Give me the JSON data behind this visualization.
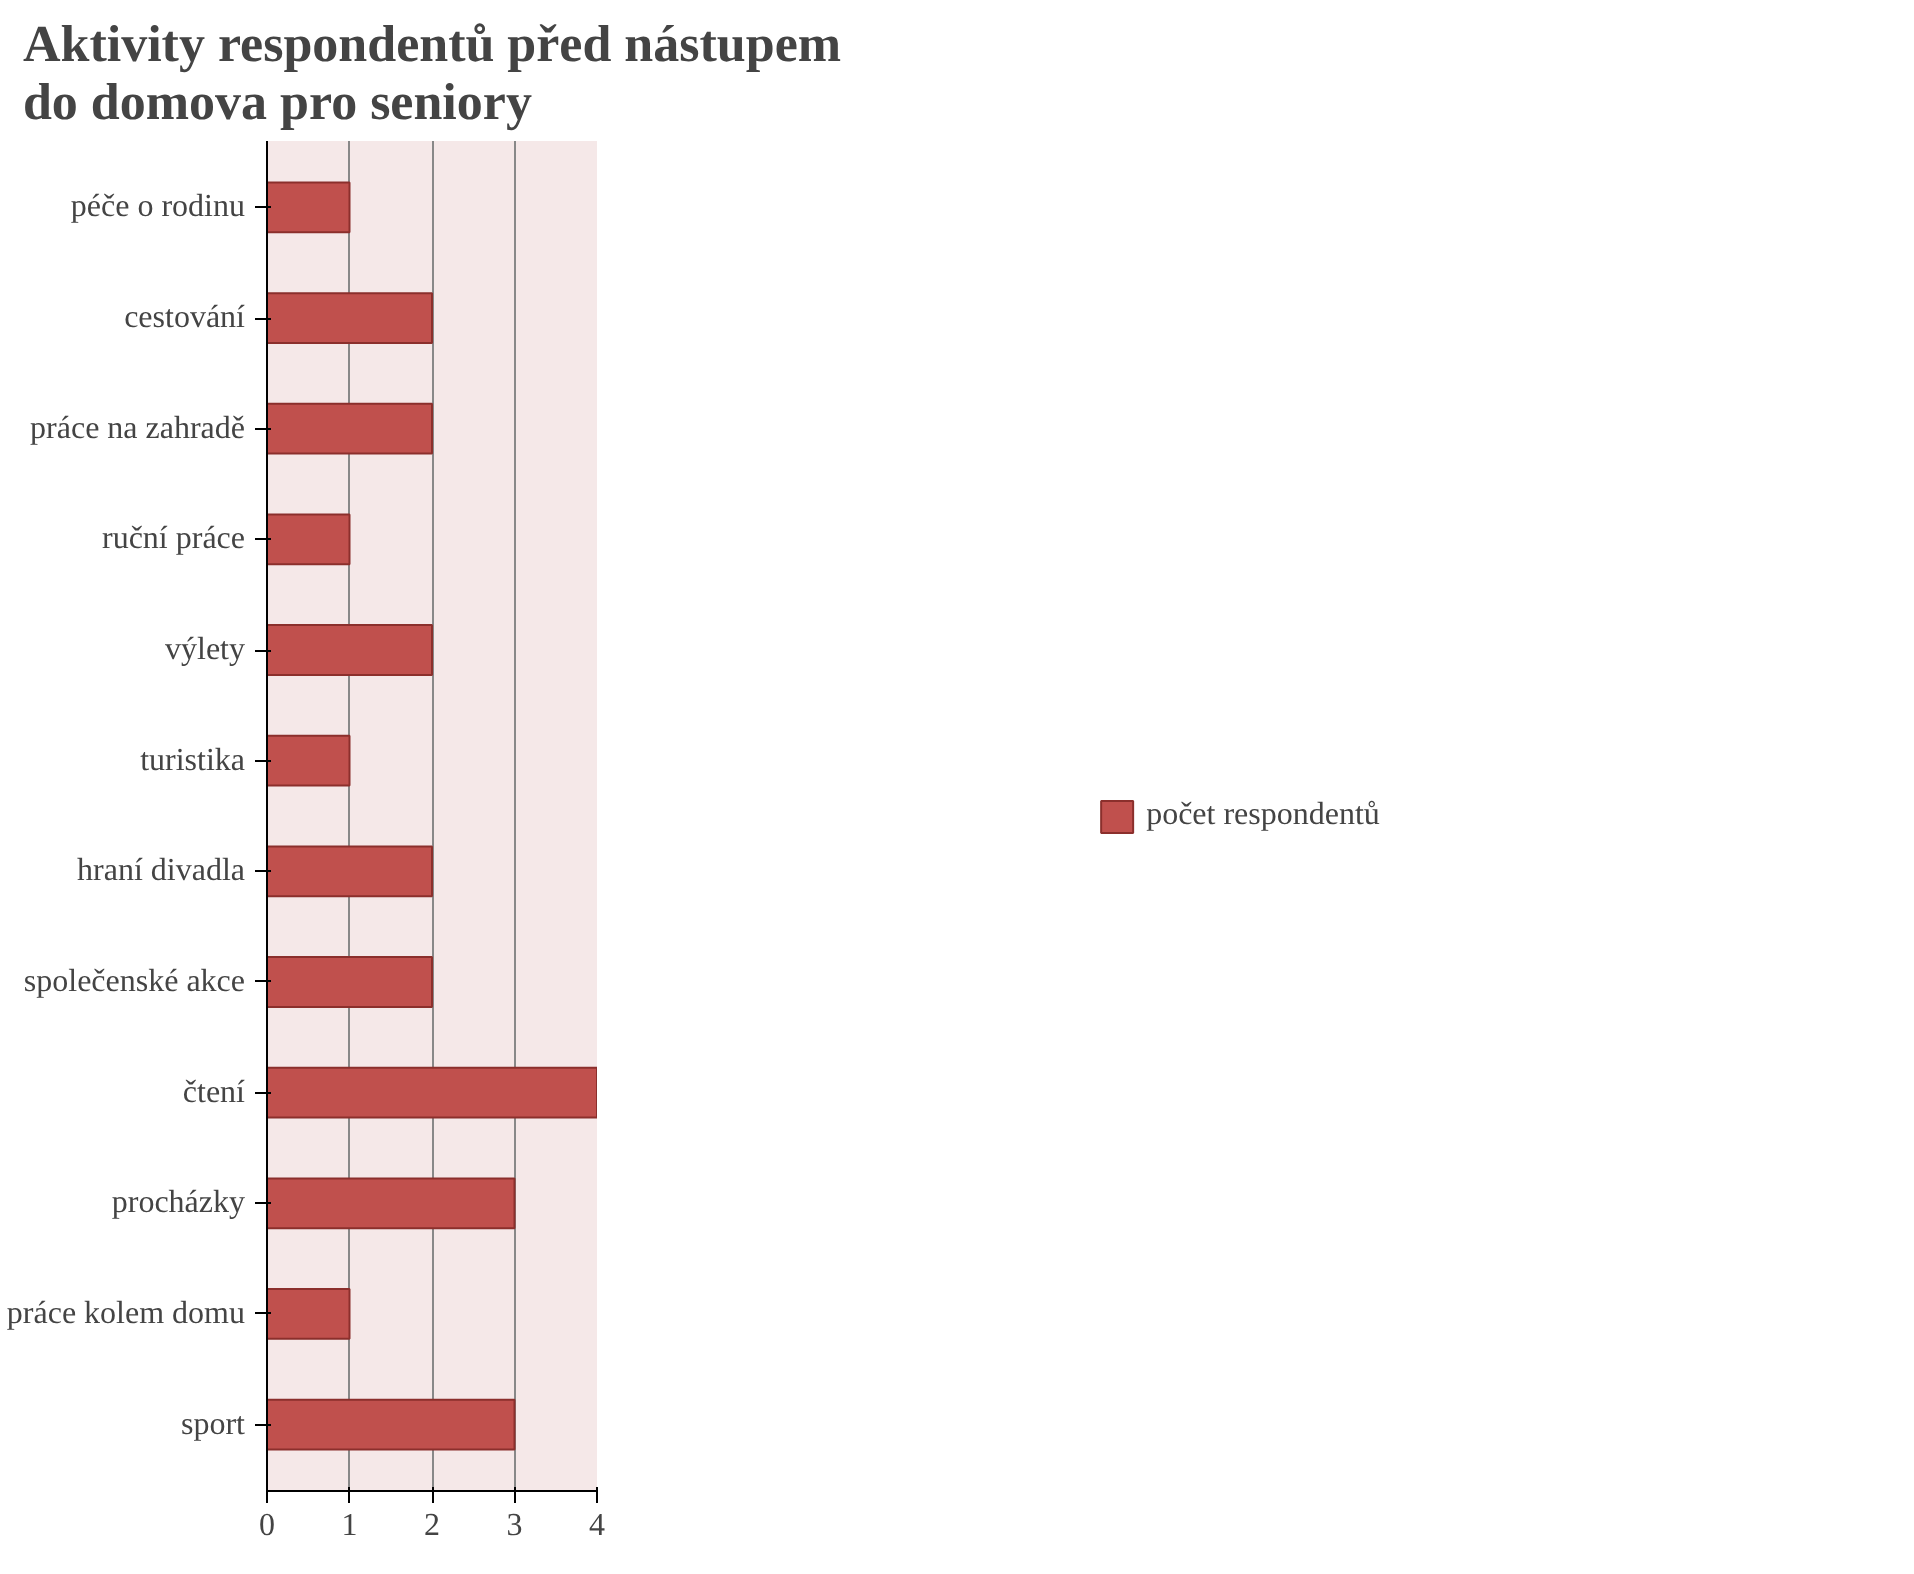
{
  "chart_data": {
    "type": "bar",
    "orientation": "horizontal",
    "title": "Aktivity respondentů před nástupem do domova pro seniory",
    "categories": [
      "péče o rodinu",
      "cestování",
      "práce na zahradě",
      "ruční práce",
      "výlety",
      "turistika",
      "hraní divadla",
      "společenské akce",
      "čtení",
      "procházky",
      "práce kolem domu",
      "sport"
    ],
    "series": [
      {
        "name": "počet respondentů",
        "color": "#c0504d",
        "values": [
          1,
          2,
          2,
          1,
          2,
          1,
          2,
          2,
          4,
          3,
          1,
          3
        ]
      }
    ],
    "xlim": [
      0,
      4
    ],
    "xticks": [
      0,
      1,
      2,
      3,
      4
    ],
    "grid": "x",
    "legend": "right"
  }
}
